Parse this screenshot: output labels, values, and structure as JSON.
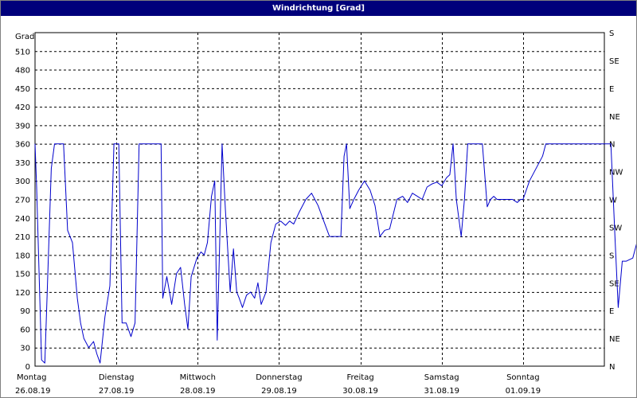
{
  "title": "Windrichtung [Grad]",
  "chart_data": {
    "type": "line",
    "title": "Windrichtung [Grad]",
    "ylabel": "Grad",
    "ylim": [
      0,
      540
    ],
    "yticks": [
      0,
      30,
      60,
      90,
      120,
      150,
      180,
      210,
      240,
      270,
      300,
      330,
      360,
      390,
      420,
      450,
      480,
      510
    ],
    "right_axis_labels": [
      "N",
      "NE",
      "E",
      "SE",
      "S",
      "SW",
      "W",
      "NW",
      "N",
      "NE",
      "E",
      "SE",
      "S"
    ],
    "day_labels": [
      {
        "day": "Montag",
        "date": "26.08.19"
      },
      {
        "day": "Dienstag",
        "date": "27.08.19"
      },
      {
        "day": "Mittwoch",
        "date": "28.08.19"
      },
      {
        "day": "Donnerstag",
        "date": "29.08.19"
      },
      {
        "day": "Freitag",
        "date": "30.08.19"
      },
      {
        "day": "Samstag",
        "date": "31.08.19"
      },
      {
        "day": "Sonntag",
        "date": "01.09.19"
      }
    ],
    "x_unit": "days since 26.08.19 00:00",
    "grid": true,
    "line_color": "#0000cc",
    "series": [
      {
        "name": "Windrichtung",
        "points": [
          [
            0.0,
            360
          ],
          [
            0.02,
            290
          ],
          [
            0.05,
            150
          ],
          [
            0.08,
            10
          ],
          [
            0.12,
            5
          ],
          [
            0.15,
            120
          ],
          [
            0.2,
            320
          ],
          [
            0.24,
            360
          ],
          [
            0.3,
            360
          ],
          [
            0.35,
            360
          ],
          [
            0.4,
            220
          ],
          [
            0.46,
            200
          ],
          [
            0.52,
            110
          ],
          [
            0.56,
            70
          ],
          [
            0.6,
            45
          ],
          [
            0.66,
            30
          ],
          [
            0.72,
            40
          ],
          [
            0.76,
            20
          ],
          [
            0.8,
            5
          ],
          [
            0.86,
            80
          ],
          [
            0.92,
            130
          ],
          [
            0.97,
            360
          ],
          [
            1.03,
            360
          ],
          [
            1.07,
            70
          ],
          [
            1.12,
            70
          ],
          [
            1.18,
            48
          ],
          [
            1.23,
            70
          ],
          [
            1.28,
            360
          ],
          [
            1.35,
            360
          ],
          [
            1.45,
            360
          ],
          [
            1.55,
            360
          ],
          [
            1.57,
            110
          ],
          [
            1.62,
            145
          ],
          [
            1.68,
            100
          ],
          [
            1.74,
            150
          ],
          [
            1.79,
            160
          ],
          [
            1.84,
            100
          ],
          [
            1.88,
            60
          ],
          [
            1.92,
            145
          ],
          [
            1.99,
            175
          ],
          [
            2.04,
            185
          ],
          [
            2.08,
            180
          ],
          [
            2.12,
            200
          ],
          [
            2.17,
            275
          ],
          [
            2.21,
            300
          ],
          [
            2.24,
            42
          ],
          [
            2.27,
            200
          ],
          [
            2.3,
            360
          ],
          [
            2.34,
            255
          ],
          [
            2.4,
            120
          ],
          [
            2.44,
            190
          ],
          [
            2.48,
            120
          ],
          [
            2.51,
            110
          ],
          [
            2.55,
            95
          ],
          [
            2.6,
            115
          ],
          [
            2.65,
            120
          ],
          [
            2.7,
            110
          ],
          [
            2.74,
            135
          ],
          [
            2.78,
            100
          ],
          [
            2.84,
            120
          ],
          [
            2.9,
            200
          ],
          [
            2.96,
            230
          ],
          [
            3.02,
            235
          ],
          [
            3.08,
            228
          ],
          [
            3.13,
            235
          ],
          [
            3.18,
            230
          ],
          [
            3.25,
            250
          ],
          [
            3.33,
            270
          ],
          [
            3.4,
            280
          ],
          [
            3.48,
            260
          ],
          [
            3.55,
            235
          ],
          [
            3.62,
            210
          ],
          [
            3.7,
            210
          ],
          [
            3.76,
            210
          ],
          [
            3.8,
            340
          ],
          [
            3.83,
            360
          ],
          [
            3.87,
            255
          ],
          [
            3.92,
            270
          ],
          [
            3.98,
            285
          ],
          [
            4.05,
            300
          ],
          [
            4.12,
            285
          ],
          [
            4.18,
            260
          ],
          [
            4.24,
            210
          ],
          [
            4.3,
            220
          ],
          [
            4.36,
            222
          ],
          [
            4.45,
            270
          ],
          [
            4.52,
            275
          ],
          [
            4.58,
            265
          ],
          [
            4.64,
            280
          ],
          [
            4.7,
            275
          ],
          [
            4.76,
            270
          ],
          [
            4.82,
            290
          ],
          [
            4.88,
            295
          ],
          [
            4.94,
            298
          ],
          [
            5.0,
            292
          ],
          [
            5.06,
            305
          ],
          [
            5.1,
            310
          ],
          [
            5.14,
            360
          ],
          [
            5.18,
            270
          ],
          [
            5.24,
            210
          ],
          [
            5.28,
            270
          ],
          [
            5.32,
            360
          ],
          [
            5.45,
            360
          ],
          [
            5.5,
            360
          ],
          [
            5.56,
            258
          ],
          [
            5.6,
            270
          ],
          [
            5.64,
            275
          ],
          [
            5.68,
            270
          ],
          [
            5.74,
            270
          ],
          [
            5.8,
            270
          ],
          [
            5.87,
            270
          ],
          [
            5.93,
            265
          ],
          [
            5.97,
            270
          ],
          [
            6.0,
            270
          ],
          [
            6.08,
            300
          ],
          [
            6.16,
            320
          ],
          [
            6.24,
            340
          ],
          [
            6.28,
            360
          ],
          [
            6.5,
            360
          ],
          [
            6.82,
            360
          ],
          [
            6.92,
            360
          ],
          [
            7.05,
            360
          ],
          [
            7.08,
            360
          ],
          [
            7.13,
            210
          ],
          [
            7.17,
            95
          ],
          [
            7.22,
            170
          ],
          [
            7.27,
            170
          ],
          [
            7.35,
            175
          ],
          [
            7.42,
            210
          ],
          [
            7.47,
            260
          ],
          [
            7.52,
            205
          ],
          [
            7.58,
            225
          ],
          [
            7.64,
            210
          ],
          [
            7.7,
            195
          ],
          [
            7.76,
            185
          ],
          [
            7.82,
            180
          ],
          [
            7.88,
            180
          ],
          [
            7.92,
            210
          ],
          [
            7.98,
            270
          ],
          [
            8.04,
            275
          ],
          [
            8.08,
            265
          ],
          [
            8.13,
            270
          ],
          [
            8.2,
            245
          ],
          [
            8.28,
            250
          ],
          [
            8.36,
            255
          ],
          [
            8.44,
            262
          ],
          [
            8.52,
            248
          ],
          [
            8.58,
            300
          ],
          [
            8.64,
            295
          ],
          [
            8.7,
            300
          ],
          [
            8.76,
            295
          ],
          [
            8.82,
            300
          ],
          [
            8.88,
            285
          ],
          [
            8.92,
            280
          ],
          [
            8.98,
            300
          ],
          [
            9.04,
            310
          ],
          [
            9.1,
            320
          ],
          [
            9.15,
            305
          ],
          [
            9.2,
            295
          ],
          [
            9.24,
            280
          ],
          [
            9.3,
            295
          ]
        ]
      }
    ]
  }
}
